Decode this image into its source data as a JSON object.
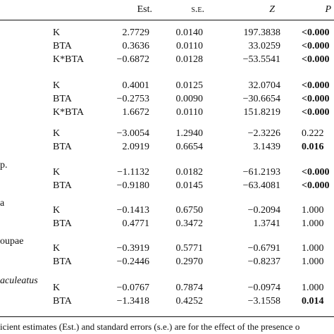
{
  "headers": {
    "est": "Est.",
    "se": "s.e.",
    "z": "Z",
    "p": "P"
  },
  "groups": [
    {
      "label": "",
      "rows": [
        {
          "term": "K",
          "est": "2.7729",
          "se": "0.0140",
          "z": "197.3838",
          "p": "<0.000",
          "bold": true
        },
        {
          "term": "BTA",
          "est": "0.3636",
          "se": "0.0110",
          "z": "33.0259",
          "p": "<0.000",
          "bold": true
        },
        {
          "term": "K*BTA",
          "est": "−0.6872",
          "se": "0.0128",
          "z": "−53.5541",
          "p": "<0.000",
          "bold": true
        }
      ]
    },
    {
      "label": "",
      "rows": [
        {
          "term": "K",
          "est": "0.4001",
          "se": "0.0125",
          "z": "32.0704",
          "p": "<0.000",
          "bold": true
        },
        {
          "term": "BTA",
          "est": "−0.2753",
          "se": "0.0090",
          "z": "−30.6654",
          "p": "<0.000",
          "bold": true
        },
        {
          "term": "K*BTA",
          "est": "1.6672",
          "se": "0.0110",
          "z": "151.8219",
          "p": "<0.000",
          "bold": true
        }
      ]
    },
    {
      "label": "",
      "rows": [
        {
          "term": "K",
          "est": "−3.0054",
          "se": "1.2940",
          "z": "−2.3226",
          "p": "0.222",
          "bold": false
        },
        {
          "term": "BTA",
          "est": "2.0919",
          "se": "0.6654",
          "z": "3.1439",
          "p": "0.016",
          "bold": true
        }
      ]
    },
    {
      "label": "p.",
      "rows": [
        {
          "term": "K",
          "est": "−1.1132",
          "se": "0.0182",
          "z": "−61.2193",
          "p": "<0.000",
          "bold": true
        },
        {
          "term": "BTA",
          "est": "−0.9180",
          "se": "0.0145",
          "z": "−63.4081",
          "p": "<0.000",
          "bold": true
        }
      ]
    },
    {
      "label": "a",
      "rows": [
        {
          "term": "K",
          "est": "−0.1413",
          "se": "0.6750",
          "z": "−0.2094",
          "p": "1.000",
          "bold": false
        },
        {
          "term": "BTA",
          "est": "0.4771",
          "se": "0.3472",
          "z": "1.3741",
          "p": "1.000",
          "bold": false
        }
      ]
    },
    {
      "label": "oupae",
      "rows": [
        {
          "term": "K",
          "est": "−0.3919",
          "se": "0.5771",
          "z": "−0.6791",
          "p": "1.000",
          "bold": false
        },
        {
          "term": "BTA",
          "est": "−0.2446",
          "se": "0.2970",
          "z": "−0.8237",
          "p": "1.000",
          "bold": false
        }
      ]
    },
    {
      "label": "aculeatus",
      "rows": [
        {
          "term": "K",
          "est": "−0.0767",
          "se": "0.7874",
          "z": "−0.0974",
          "p": "1.000",
          "bold": false
        },
        {
          "term": "BTA",
          "est": "−1.3418",
          "se": "0.4252",
          "z": "−3.1558",
          "p": "0.014",
          "bold": true
        }
      ]
    }
  ],
  "footnote": "icient estimates (Est.) and standard errors (s.e.) are for the effect of the presence o"
}
